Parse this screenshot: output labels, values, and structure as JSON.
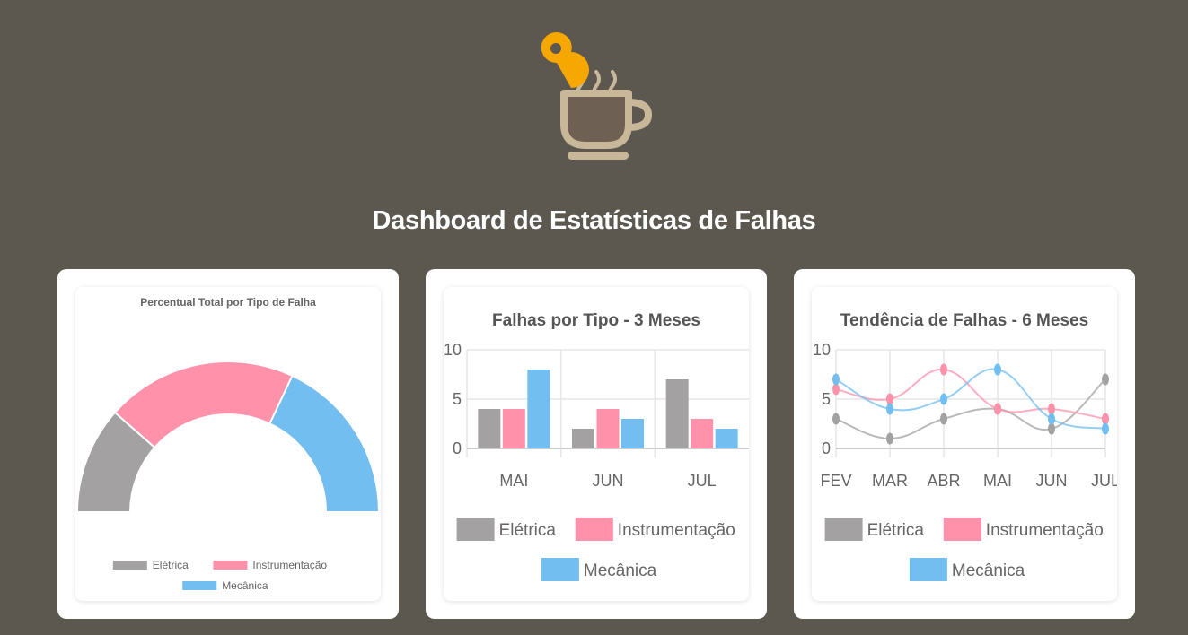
{
  "header": {
    "title": "Dashboard de Estatísticas de Falhas",
    "logo": "coffee-cup-with-location-pin-icon"
  },
  "colors": {
    "eletrica": "#a3a1a2",
    "instrumentacao": "#ff91ab",
    "mecanica": "#72bef0",
    "background": "#5c5850"
  },
  "chart_data": [
    {
      "type": "pie",
      "variant": "half-doughnut",
      "title": "Percentual Total por Tipo de Falha",
      "labels": [
        "Elétrica",
        "Instrumentação",
        "Mecânica"
      ],
      "values": [
        23,
        41,
        36
      ],
      "legend": "bottom"
    },
    {
      "type": "bar",
      "title": "Falhas por Tipo - 3 Meses",
      "categories": [
        "MAI",
        "JUN",
        "JUL"
      ],
      "series": [
        {
          "name": "Elétrica",
          "values": [
            4,
            2,
            7
          ]
        },
        {
          "name": "Instrumentação",
          "values": [
            4,
            4,
            3
          ]
        },
        {
          "name": "Mecânica",
          "values": [
            8,
            3,
            2
          ]
        }
      ],
      "ylim": [
        0,
        10
      ],
      "yticks": [
        "0",
        "5",
        "10"
      ],
      "grid": true,
      "legend": "bottom"
    },
    {
      "type": "line",
      "title": "Tendência de Falhas - 6 Meses",
      "categories": [
        "FEV",
        "MAR",
        "ABR",
        "MAI",
        "JUN",
        "JUL"
      ],
      "series": [
        {
          "name": "Elétrica",
          "values": [
            3,
            1,
            3,
            4,
            2,
            7
          ]
        },
        {
          "name": "Instrumentação",
          "values": [
            6,
            5,
            8,
            4,
            4,
            3
          ]
        },
        {
          "name": "Mecânica",
          "values": [
            7,
            4,
            5,
            8,
            3,
            2
          ]
        }
      ],
      "ylim": [
        0,
        10
      ],
      "yticks": [
        "0",
        "5",
        "10"
      ],
      "grid": true,
      "smooth": true,
      "legend": "bottom"
    }
  ]
}
